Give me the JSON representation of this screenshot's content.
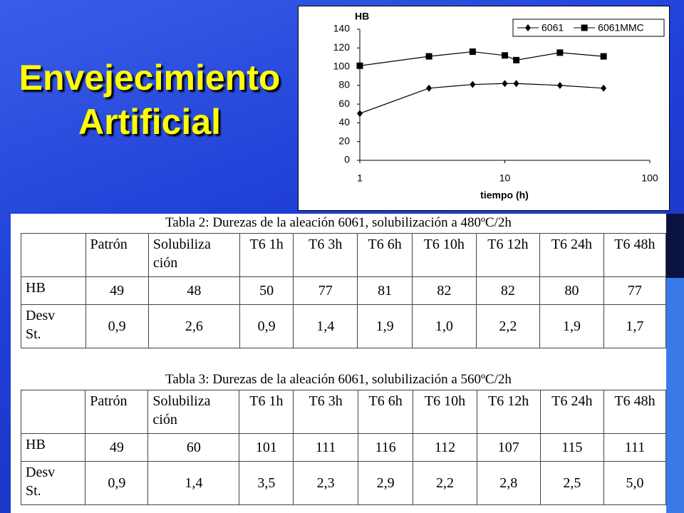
{
  "title": "Envejecimiento Artificial",
  "chart_data": {
    "type": "line",
    "ylabel": "HB",
    "xlabel": "tiempo (h)",
    "xscale": "log",
    "x": [
      1,
      3,
      6,
      10,
      12,
      24,
      48
    ],
    "series": [
      {
        "name": "6061",
        "color": "#000000",
        "marker": "diamond",
        "values": [
          50,
          77,
          81,
          82,
          82,
          80,
          77
        ]
      },
      {
        "name": "6061MMC",
        "color": "#000000",
        "marker": "square",
        "values": [
          101,
          111,
          116,
          112,
          107,
          115,
          111
        ]
      }
    ],
    "xlim": [
      1,
      100
    ],
    "xticks": [
      1,
      10,
      100
    ],
    "ylim": [
      0,
      140
    ],
    "yticks": [
      0,
      20,
      40,
      60,
      80,
      100,
      120,
      140
    ],
    "legend": "top-right"
  },
  "tables": [
    {
      "caption": "Tabla 2: Durezas de la aleación 6061, solubilización a 480ºC/2h",
      "header": [
        "Patrón",
        "Solubiliza\nción",
        "T6 1h",
        "T6 3h",
        "T6 6h",
        "T6 10h",
        "T6 12h",
        "T6 24h",
        "T6 48h"
      ],
      "rows": [
        [
          "HB",
          "49",
          "48",
          "50",
          "77",
          "81",
          "82",
          "82",
          "80",
          "77"
        ],
        [
          "Desv\nSt.",
          "0,9",
          "2,6",
          "0,9",
          "1,4",
          "1,9",
          "1,0",
          "2,2",
          "1,9",
          "1,7"
        ]
      ]
    },
    {
      "caption": "Tabla 3: Durezas de la aleación 6061, solubilización a 560ºC/2h",
      "header": [
        "Patrón",
        "Solubiliza\nción",
        "T6 1h",
        "T6 3h",
        "T6 6h",
        "T6 10h",
        "T6 12h",
        "T6 24h",
        "T6 48h"
      ],
      "rows": [
        [
          "HB",
          "49",
          "60",
          "101",
          "111",
          "116",
          "112",
          "107",
          "115",
          "111"
        ],
        [
          "Desv\nSt.",
          "0,9",
          "1,4",
          "3,5",
          "2,3",
          "2,9",
          "2,2",
          "2,8",
          "2,5",
          "5,0"
        ]
      ]
    }
  ]
}
